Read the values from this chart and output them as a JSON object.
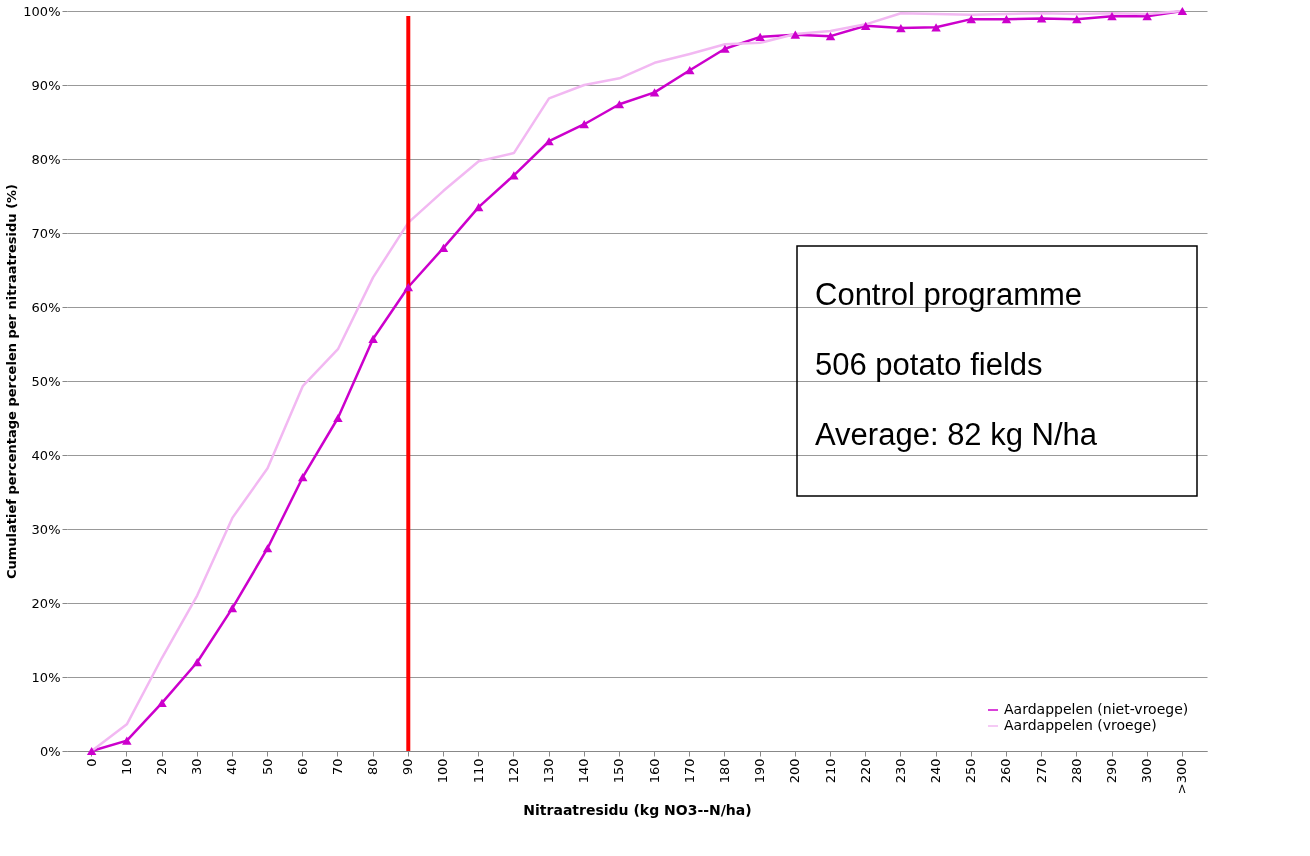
{
  "chart_data": {
    "type": "line",
    "xlabel": "Nitraatresidu (kg NO3--N/ha)",
    "ylabel": "Cumulatief percentage percelen per nitraatresidu (%)",
    "categories": [
      "0",
      "10",
      "20",
      "30",
      "40",
      "50",
      "60",
      "70",
      "80",
      "90",
      "100",
      "110",
      "120",
      "130",
      "140",
      "150",
      "160",
      "170",
      "180",
      "190",
      "200",
      "210",
      "220",
      "230",
      "240",
      "250",
      "260",
      "270",
      "280",
      "290",
      "300",
      ">300"
    ],
    "series": [
      {
        "name": "Aardappelen (niet-vroege)",
        "color": "#cc00cc",
        "marker": "triangle",
        "values": [
          0,
          1.4,
          6.5,
          12,
          19.3,
          27.4,
          37,
          45,
          55.7,
          62.7,
          68,
          73.5,
          77.8,
          82.4,
          84.7,
          87.4,
          89,
          92,
          94.9,
          96.5,
          96.8,
          96.6,
          98,
          97.7,
          97.8,
          98.9,
          98.9,
          99,
          98.9,
          99.3,
          99.3,
          100
        ]
      },
      {
        "name": "Aardappelen (vroege)",
        "color": "#f2b8f2",
        "marker": "none",
        "values": [
          0,
          3.6,
          12.6,
          21,
          31.5,
          38.2,
          49.3,
          54.3,
          64,
          71.4,
          75.7,
          79.7,
          80.8,
          88.2,
          90,
          90.9,
          93,
          94.2,
          95.5,
          95.7,
          96.9,
          97.3,
          98.2,
          99.7,
          99.6,
          99.5,
          99.6,
          99.7,
          99.6,
          99.7,
          99.6,
          100
        ]
      }
    ],
    "ylim": [
      0,
      100
    ],
    "yticks": [
      {
        "value": 0,
        "label": "0%"
      },
      {
        "value": 10,
        "label": "10%"
      },
      {
        "value": 20,
        "label": "20%"
      },
      {
        "value": 30,
        "label": "30%"
      },
      {
        "value": 40,
        "label": "40%"
      },
      {
        "value": 50,
        "label": "50%"
      },
      {
        "value": 60,
        "label": "60%"
      },
      {
        "value": 70,
        "label": "70%"
      },
      {
        "value": 80,
        "label": "80%"
      },
      {
        "value": 90,
        "label": "90%"
      },
      {
        "value": 100,
        "label": "100%"
      }
    ],
    "grid": "y",
    "legend": "bottom right",
    "line_style": "solid",
    "ref_lines": [
      {
        "axis": "x",
        "value": "90",
        "color": "#ff0000"
      }
    ],
    "annotations": [
      "Control programme",
      "506 potato fields",
      "Average: 82 kg N/ha"
    ]
  }
}
